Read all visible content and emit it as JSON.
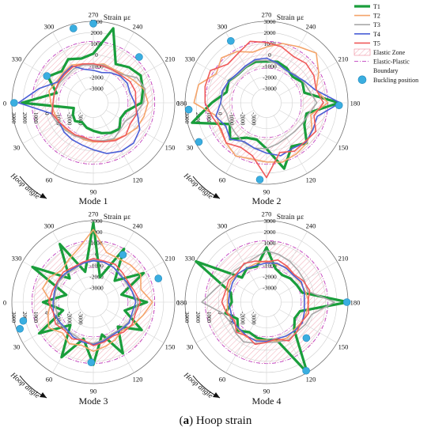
{
  "caption": {
    "letter": "a",
    "rest": " Hoop strain",
    "open": "(",
    "close": ")"
  },
  "legend": {
    "items": [
      {
        "label": "T1",
        "color": "#1a9e3c",
        "kind": "line",
        "width": 3.2
      },
      {
        "label": "T2",
        "color": "#f4a46a",
        "kind": "line",
        "width": 1.6
      },
      {
        "label": "T3",
        "color": "#a8a8a8",
        "kind": "line",
        "width": 1.6
      },
      {
        "label": "T4",
        "color": "#4a5fd6",
        "kind": "line",
        "width": 1.6
      },
      {
        "label": "T5",
        "color": "#ef5a5a",
        "kind": "line",
        "width": 1.6
      },
      {
        "label": "Elastic Zone",
        "kind": "hatch"
      },
      {
        "label": "Elastic-Plastic",
        "kind": "dashdot"
      },
      {
        "label": "Boundary",
        "kind": "none"
      },
      {
        "label": "Buckling position",
        "kind": "dot"
      }
    ]
  },
  "colors": {
    "hatch": "#e6506a",
    "boundary": "#c040c0",
    "buckling": "#3aaee0"
  },
  "chart_data": [
    {
      "type": "polar-line",
      "title": "Mode 1",
      "radial_label": "Strain με",
      "radial_ticks": [
        "3000",
        "2000",
        "1000",
        "0",
        "-1000",
        "-2000",
        "-3000"
      ],
      "angle_ticks": [
        "270",
        "240",
        "210",
        "180",
        "150",
        "120",
        "90",
        "60",
        "30",
        "0",
        "330",
        "300"
      ],
      "angle_axis_label": "Hoop angle",
      "rlim": [
        -3000,
        3000
      ],
      "elastic_zone": [
        -1200,
        1200
      ],
      "series": [
        {
          "name": "T1",
          "values": [
            2100,
            -2500,
            -2200,
            -2000,
            -2300,
            -2000,
            -1800,
            -1500,
            -1200,
            -1000,
            -1500,
            -1300,
            0,
            300,
            600,
            200,
            -300,
            2600,
            100,
            -200,
            200,
            -300,
            400,
            -900
          ]
        },
        {
          "name": "T2",
          "values": [
            -500,
            -700,
            -800,
            -900,
            -1000,
            -900,
            -800,
            -700,
            -500,
            -200,
            200,
            400,
            600,
            400,
            -200,
            -600,
            -800,
            -700,
            -900,
            -700,
            -400,
            -500,
            -500,
            -200
          ]
        },
        {
          "name": "T3",
          "values": [
            -700,
            -400,
            -600,
            -800,
            -900,
            -1000,
            -900,
            -800,
            -600,
            -900,
            -1000,
            -400,
            200,
            500,
            200,
            -700,
            -900,
            -800,
            -900,
            -800,
            -800,
            -900,
            -800,
            -700
          ]
        },
        {
          "name": "T4",
          "values": [
            2400,
            -500,
            -800,
            -600,
            -500,
            -400,
            -100,
            400,
            700,
            800,
            500,
            -200,
            -600,
            -900,
            -800,
            -900,
            -1200,
            -1500,
            -1400,
            -1200,
            -500,
            -600,
            -600,
            700
          ]
        },
        {
          "name": "T5",
          "values": [
            -700,
            -500,
            -800,
            -1000,
            -1000,
            -1100,
            -900,
            -700,
            -400,
            -200,
            -500,
            -300,
            -500,
            -400,
            -500,
            -800,
            -900,
            -900,
            -800,
            -700,
            -600,
            -700,
            -700,
            -700
          ]
        }
      ],
      "buckling_positions": [
        {
          "angle": 0,
          "strain": 2800
        },
        {
          "angle": 285,
          "strain": 2600
        },
        {
          "angle": 270,
          "strain": 2800
        },
        {
          "angle": 225,
          "strain": 1500
        },
        {
          "angle": 330,
          "strain": 500
        }
      ]
    },
    {
      "type": "polar-line",
      "title": "Mode 2",
      "radial_label": "Strain με",
      "radial_ticks": [
        "3000",
        "2000",
        "1000",
        "0",
        "-1000",
        "-2000",
        "-3000"
      ],
      "angle_ticks": [
        "270",
        "240",
        "210",
        "180",
        "150",
        "120",
        "90",
        "60",
        "30",
        "0",
        "330",
        "300"
      ],
      "angle_axis_label": "Hoop angle",
      "rlim": [
        -3000,
        3000
      ],
      "elastic_zone": [
        -1200,
        1200
      ],
      "series": [
        {
          "name": "T1",
          "values": [
            600,
            2600,
            -500,
            300,
            -700,
            -900,
            -200,
            1800,
            200,
            800,
            -400,
            -600,
            2200,
            -800,
            -600,
            -1000,
            -700,
            -500,
            -600,
            -500,
            -600,
            -700,
            -400,
            -600
          ]
        },
        {
          "name": "T2",
          "values": [
            2200,
            300,
            500,
            800,
            1200,
            900,
            1000,
            1200,
            1000,
            800,
            400,
            -200,
            1200,
            300,
            1100,
            2000,
            1500,
            1200,
            700,
            400,
            1000,
            1400,
            900,
            2000
          ]
        },
        {
          "name": "T3",
          "values": [
            -200,
            -600,
            -500,
            -400,
            -200,
            -100,
            -200,
            -500,
            -700,
            -700,
            -600,
            -400,
            200,
            -300,
            -500,
            -700,
            -900,
            -700,
            -500,
            -400,
            -600,
            -700,
            -400,
            -300
          ]
        },
        {
          "name": "T4",
          "values": [
            -200,
            400,
            -100,
            300,
            -300,
            -100,
            200,
            600,
            400,
            700,
            500,
            400,
            2300,
            200,
            -400,
            -800,
            -900,
            -600,
            -300,
            -300,
            -500,
            -600,
            -400,
            -200
          ]
        },
        {
          "name": "T5",
          "values": [
            1200,
            700,
            400,
            800,
            300,
            600,
            2400,
            300,
            700,
            600,
            800,
            100,
            800,
            300,
            600,
            700,
            500,
            900,
            1100,
            1400,
            800,
            600,
            1500,
            1400
          ]
        }
      ],
      "buckling_positions": [
        {
          "angle": 5,
          "strain": 2700
        },
        {
          "angle": 30,
          "strain": 2700
        },
        {
          "angle": 85,
          "strain": 2600
        },
        {
          "angle": 178,
          "strain": 2200
        },
        {
          "angle": 300,
          "strain": 2100
        }
      ]
    },
    {
      "type": "polar-line",
      "title": "Mode 3",
      "radial_label": "Strain με",
      "radial_ticks": [
        "3000",
        "2000",
        "1000",
        "0",
        "-1000",
        "-2000",
        "-3000"
      ],
      "angle_ticks": [
        "270",
        "240",
        "210",
        "180",
        "150",
        "120",
        "90",
        "60",
        "30",
        "0",
        "330",
        "300"
      ],
      "angle_axis_label": "Hoop angle",
      "rlim": [
        -3000,
        3000
      ],
      "elastic_zone": [
        -1200,
        1200
      ],
      "series": [
        {
          "name": "T1",
          "values": [
            200,
            -1500,
            1300,
            -1400,
            1400,
            -900,
            1300,
            -1300,
            1000,
            -1200,
            700,
            -1400,
            500,
            -1700,
            900,
            -1600,
            1200,
            -2000,
            2800,
            -1500,
            1700,
            -1300,
            2000,
            -1800
          ]
        },
        {
          "name": "T2",
          "values": [
            -500,
            -100,
            300,
            -400,
            0,
            -300,
            100,
            -200,
            -400,
            -700,
            -200,
            300,
            1000,
            100,
            600,
            400,
            200,
            300,
            2200,
            700,
            100,
            -300,
            200,
            400
          ]
        },
        {
          "name": "T3",
          "values": [
            -800,
            -900,
            -700,
            -800,
            -900,
            -700,
            -600,
            -800,
            -1000,
            -900,
            -700,
            -500,
            -300,
            -700,
            -900,
            -800,
            -700,
            -600,
            -500,
            -700,
            -900,
            -800,
            -700,
            -800
          ]
        },
        {
          "name": "T4",
          "values": [
            -700,
            -600,
            -800,
            -900,
            -700,
            -600,
            -500,
            -700,
            -900,
            -800,
            -600,
            -700,
            -500,
            -700,
            -800,
            -900,
            -700,
            -600,
            -600,
            -700,
            -800,
            -700,
            -600,
            -700
          ]
        },
        {
          "name": "T5",
          "values": [
            -300,
            -600,
            -400,
            -700,
            -500,
            -800,
            -400,
            -600,
            -800,
            -500,
            -300,
            -400,
            -100,
            -500,
            -700,
            -600,
            -400,
            -500,
            -400,
            -600,
            -700,
            -500,
            -600,
            -500
          ]
        }
      ],
      "buckling_positions": [
        {
          "angle": 15,
          "strain": 2200
        },
        {
          "angle": 88,
          "strain": 1100
        },
        {
          "angle": 200,
          "strain": 1900
        },
        {
          "angle": 238,
          "strain": 700
        },
        {
          "angle": 20,
          "strain": 2700
        }
      ]
    },
    {
      "type": "polar-line",
      "title": "Mode 4",
      "radial_label": "Strain με",
      "radial_ticks": [
        "3000",
        "2000",
        "1000",
        "0",
        "-1000",
        "-2000",
        "-3000"
      ],
      "angle_ticks": [
        "270",
        "240",
        "210",
        "180",
        "150",
        "120",
        "90",
        "60",
        "30",
        "0",
        "330",
        "300"
      ],
      "angle_axis_label": "Hoop angle",
      "rlim": [
        -3000,
        3000
      ],
      "elastic_zone": [
        -1200,
        1200
      ],
      "series": [
        {
          "name": "T1",
          "values": [
            -1200,
            -500,
            -1300,
            -700,
            -1200,
            -1000,
            -900,
            -800,
            3000,
            -800,
            -1400,
            -1200,
            3000,
            -1000,
            -1200,
            -1300,
            -1500,
            -1200,
            600,
            -1000,
            -800,
            -1200,
            3000,
            -1000
          ]
        },
        {
          "name": "T2",
          "values": [
            -800,
            -700,
            -900,
            -800,
            -700,
            -800,
            -900,
            -700,
            -600,
            -800,
            -700,
            -600,
            -500,
            -700,
            -800,
            -900,
            -700,
            -800,
            -600,
            -700,
            -800,
            -700,
            -600,
            -700
          ]
        },
        {
          "name": "T3",
          "values": [
            1500,
            -300,
            -600,
            -400,
            -200,
            -500,
            -700,
            -600,
            -400,
            -500,
            -300,
            -100,
            1800,
            -500,
            -400,
            -300,
            -100,
            100,
            300,
            -200,
            -400,
            -300,
            -200,
            400
          ]
        },
        {
          "name": "T4",
          "values": [
            -900,
            -1000,
            -800,
            -900,
            -800,
            -700,
            -800,
            -900,
            -800,
            -700,
            -600,
            -800,
            -900,
            -800,
            -700,
            -900,
            -800,
            -700,
            -800,
            -900,
            -800,
            -700,
            -800,
            -900
          ]
        },
        {
          "name": "T5",
          "values": [
            -300,
            -600,
            -1000,
            -500,
            -800,
            -400,
            -700,
            -900,
            -300,
            -500,
            -700,
            -400,
            -600,
            -300,
            -500,
            -800,
            -600,
            -400,
            -700,
            -500,
            -300,
            -600,
            -400,
            -500
          ]
        }
      ],
      "buckling_positions": [
        {
          "angle": 180,
          "strain": 2900
        },
        {
          "angle": 120,
          "strain": 2800
        },
        {
          "angle": 138,
          "strain": 500
        }
      ]
    }
  ]
}
